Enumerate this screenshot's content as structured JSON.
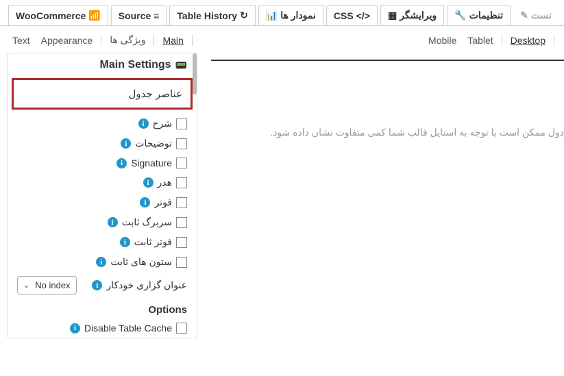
{
  "top_tabs": {
    "test": "تست",
    "settings": "تنظیمات",
    "editor": "ویرایشگر",
    "css": "CSS",
    "charts": "نمودار ها",
    "table_history": "Table History",
    "source": "Source",
    "woocommerce": "WooCommerce"
  },
  "sub_tabs_left": {
    "text": "Text",
    "appearance": "Appearance",
    "features": "ویژگی ها",
    "main": "Main"
  },
  "sub_tabs_right": {
    "mobile": "Mobile",
    "tablet": "Tablet",
    "desktop": "Desktop"
  },
  "sidebar": {
    "main_settings": "Main Settings",
    "table_elements": "عناصر جدول",
    "options": {
      "description": "شرح",
      "explanations": "توضیحات",
      "signature": "Signature",
      "header": "هدر",
      "footer": "فوتر",
      "fixed_header": "سربرگ ثابت",
      "fixed_footer": "فوتر ثابت",
      "fixed_columns": "ستون های ثابت",
      "auto_index": "عنوان گزاری خودکار",
      "disable_cache": "Disable Table Cache"
    },
    "dropdown_value": "No index",
    "options_title": "Options"
  },
  "preview_note": "دول ممکن است با توجه به استایل قالب شما کمی متفاوت نشان داده شود.",
  "colors": {
    "highlight_border": "#b02a2a",
    "info_bg": "#2196c9"
  }
}
